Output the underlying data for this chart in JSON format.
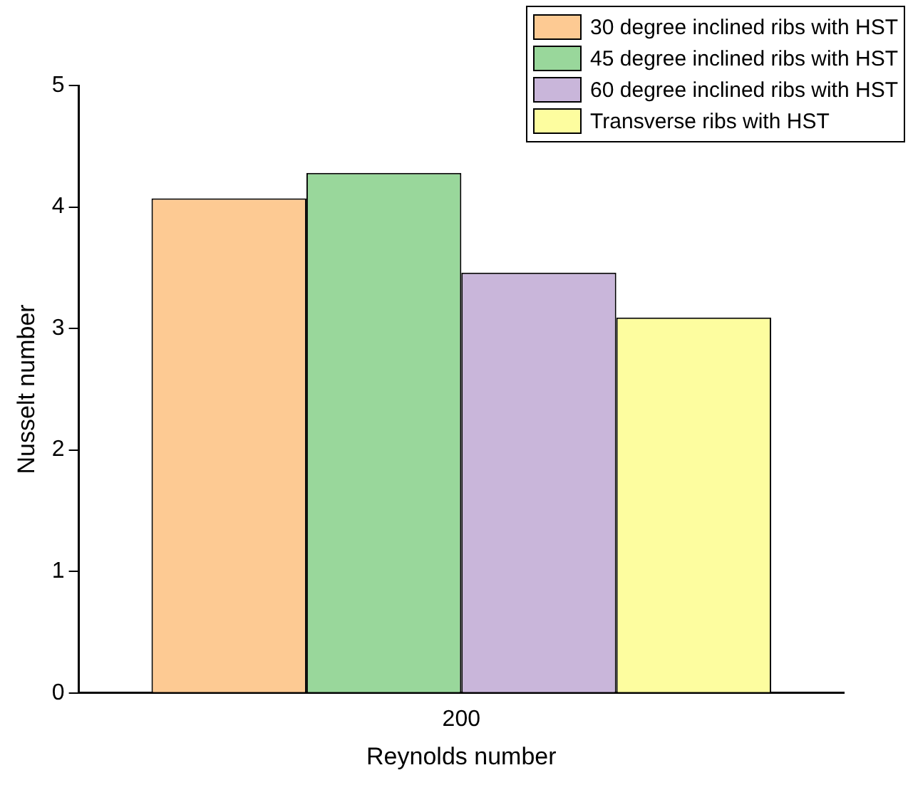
{
  "chart_data": {
    "type": "bar",
    "xlabel": "Reynolds number",
    "ylabel": "Nusselt number",
    "categories": [
      "200"
    ],
    "series": [
      {
        "name": "30 degree inclined ribs with HST",
        "color": "#fdca93",
        "values": [
          4.07
        ]
      },
      {
        "name": "45 degree inclined ribs with HST",
        "color": "#99d79b",
        "values": [
          4.28
        ]
      },
      {
        "name": "60 degree inclined ribs with HST",
        "color": "#c9b6da",
        "values": [
          3.46
        ]
      },
      {
        "name": "Transverse ribs with HST",
        "color": "#fdfd9f",
        "values": [
          3.09
        ]
      }
    ],
    "ylim": [
      0,
      5
    ],
    "yticks": [
      0,
      1,
      2,
      3,
      4,
      5
    ],
    "grid": false,
    "legend": "top right"
  }
}
